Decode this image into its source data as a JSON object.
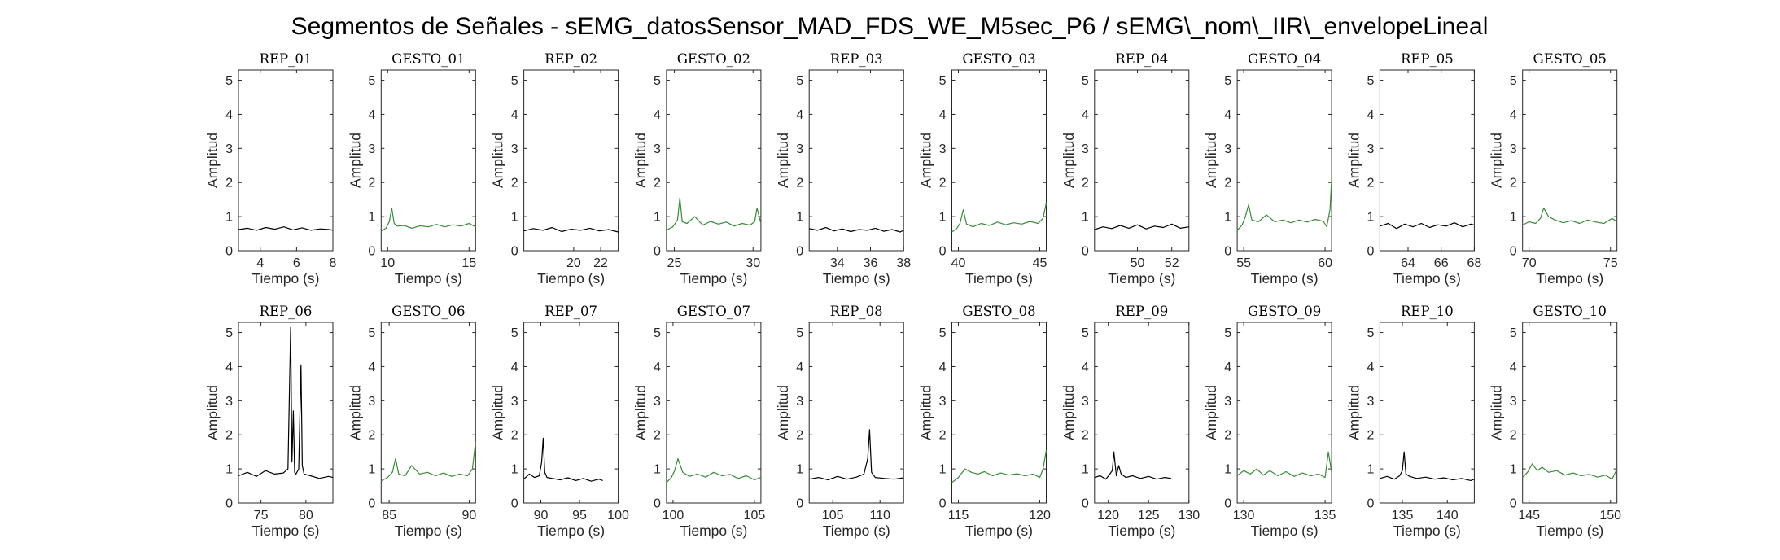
{
  "figure": {
    "title": "Segmentos de Señales - sEMG_datosSensor_MAD_FDS_WE_M5sec_P6 / sEMG\\_nom\\_IIR\\_envelopeLineal"
  },
  "colors": {
    "rep": "#000000",
    "gesto": "#3a8a3a",
    "axis": "#262626"
  },
  "chart_data": [
    {
      "type": "line",
      "title": "REP_01",
      "xlabel": "Tiempo (s)",
      "ylabel": "Amplitud",
      "xlim": [
        2.8,
        8
      ],
      "ylim": [
        0,
        5.3
      ],
      "xticks": [
        4,
        6,
        8
      ],
      "yticks": [
        0,
        1,
        2,
        3,
        4,
        5
      ],
      "color_key": "rep",
      "x": [
        2.8,
        3.3,
        3.8,
        4.3,
        4.8,
        5.3,
        5.8,
        6.3,
        6.8,
        7.3,
        7.8,
        8.0
      ],
      "y": [
        0.62,
        0.66,
        0.6,
        0.68,
        0.63,
        0.7,
        0.61,
        0.67,
        0.6,
        0.64,
        0.62,
        0.6
      ]
    },
    {
      "type": "line",
      "title": "GESTO_01",
      "xlabel": "Tiempo (s)",
      "ylabel": "Amplitud",
      "xlim": [
        9.6,
        15.4
      ],
      "ylim": [
        0,
        5.3
      ],
      "xticks": [
        10,
        15
      ],
      "yticks": [
        0,
        1,
        2,
        3,
        4,
        5
      ],
      "color_key": "gesto",
      "x": [
        9.6,
        9.9,
        10.1,
        10.25,
        10.4,
        10.6,
        11.0,
        11.5,
        12.0,
        12.5,
        13.0,
        13.5,
        14.0,
        14.5,
        15.0,
        15.4
      ],
      "y": [
        0.58,
        0.66,
        0.85,
        1.25,
        0.8,
        0.72,
        0.74,
        0.66,
        0.73,
        0.7,
        0.77,
        0.7,
        0.76,
        0.72,
        0.8,
        0.7
      ]
    },
    {
      "type": "line",
      "title": "REP_02",
      "xlabel": "Tiempo (s)",
      "ylabel": "Amplitud",
      "xlim": [
        16.3,
        23.3
      ],
      "ylim": [
        0,
        5.3
      ],
      "xticks": [
        20,
        22
      ],
      "yticks": [
        0,
        1,
        2,
        3,
        4,
        5
      ],
      "color_key": "rep",
      "x": [
        16.3,
        17.0,
        17.7,
        18.4,
        19.1,
        19.8,
        20.5,
        21.2,
        21.9,
        22.6,
        23.3
      ],
      "y": [
        0.58,
        0.65,
        0.6,
        0.68,
        0.56,
        0.63,
        0.6,
        0.66,
        0.58,
        0.62,
        0.55
      ]
    },
    {
      "type": "line",
      "title": "GESTO_02",
      "xlabel": "Tiempo (s)",
      "ylabel": "Amplitud",
      "xlim": [
        24.5,
        30.5
      ],
      "ylim": [
        0,
        5.3
      ],
      "xticks": [
        25,
        30
      ],
      "yticks": [
        0,
        1,
        2,
        3,
        4,
        5
      ],
      "color_key": "gesto",
      "x": [
        24.5,
        24.9,
        25.2,
        25.35,
        25.5,
        25.8,
        26.3,
        26.8,
        27.3,
        27.8,
        28.3,
        28.8,
        29.3,
        29.8,
        30.1,
        30.25,
        30.5
      ],
      "y": [
        0.6,
        0.7,
        0.9,
        1.55,
        0.85,
        0.8,
        1.0,
        0.75,
        0.86,
        0.78,
        0.84,
        0.72,
        0.8,
        0.75,
        0.85,
        1.25,
        0.8
      ]
    },
    {
      "type": "line",
      "title": "REP_03",
      "xlabel": "Tiempo (s)",
      "ylabel": "Amplitud",
      "xlim": [
        32.3,
        38
      ],
      "ylim": [
        0,
        5.3
      ],
      "xticks": [
        34,
        36,
        38
      ],
      "yticks": [
        0,
        1,
        2,
        3,
        4,
        5
      ],
      "color_key": "rep",
      "x": [
        32.3,
        32.8,
        33.3,
        33.8,
        34.3,
        34.8,
        35.3,
        35.8,
        36.3,
        36.8,
        37.3,
        37.8,
        38.0
      ],
      "y": [
        0.65,
        0.6,
        0.68,
        0.58,
        0.64,
        0.56,
        0.62,
        0.6,
        0.66,
        0.57,
        0.62,
        0.55,
        0.6
      ]
    },
    {
      "type": "line",
      "title": "GESTO_03",
      "xlabel": "Tiempo (s)",
      "ylabel": "Amplitud",
      "xlim": [
        39.6,
        45.4
      ],
      "ylim": [
        0,
        5.3
      ],
      "xticks": [
        40,
        45
      ],
      "yticks": [
        0,
        1,
        2,
        3,
        4,
        5
      ],
      "color_key": "gesto",
      "x": [
        39.6,
        39.9,
        40.1,
        40.3,
        40.5,
        40.9,
        41.4,
        41.9,
        42.4,
        42.9,
        43.4,
        43.9,
        44.4,
        44.9,
        45.2,
        45.4
      ],
      "y": [
        0.55,
        0.65,
        0.8,
        1.2,
        0.78,
        0.7,
        0.8,
        0.74,
        0.84,
        0.76,
        0.82,
        0.78,
        0.86,
        0.8,
        0.95,
        1.4
      ]
    },
    {
      "type": "line",
      "title": "REP_04",
      "xlabel": "Tiempo (s)",
      "ylabel": "Amplitud",
      "xlim": [
        47.5,
        53
      ],
      "ylim": [
        0,
        5.3
      ],
      "xticks": [
        50,
        52
      ],
      "yticks": [
        0,
        1,
        2,
        3,
        4,
        5
      ],
      "color_key": "rep",
      "x": [
        47.5,
        48.0,
        48.5,
        49.0,
        49.5,
        50.0,
        50.5,
        51.0,
        51.5,
        52.0,
        52.5,
        53.0
      ],
      "y": [
        0.62,
        0.7,
        0.65,
        0.74,
        0.66,
        0.76,
        0.64,
        0.72,
        0.68,
        0.78,
        0.66,
        0.7
      ]
    },
    {
      "type": "line",
      "title": "GESTO_04",
      "xlabel": "Tiempo (s)",
      "ylabel": "Amplitud",
      "xlim": [
        54.6,
        60.4
      ],
      "ylim": [
        0,
        5.3
      ],
      "xticks": [
        55,
        60
      ],
      "yticks": [
        0,
        1,
        2,
        3,
        4,
        5
      ],
      "color_key": "gesto",
      "x": [
        54.6,
        54.9,
        55.1,
        55.3,
        55.5,
        55.9,
        56.4,
        56.9,
        57.4,
        57.9,
        58.4,
        58.9,
        59.4,
        59.9,
        60.1,
        60.3,
        60.4
      ],
      "y": [
        0.6,
        0.75,
        1.0,
        1.35,
        0.9,
        0.85,
        1.05,
        0.85,
        0.9,
        0.82,
        0.9,
        0.84,
        0.92,
        0.86,
        0.7,
        1.2,
        2.1
      ]
    },
    {
      "type": "line",
      "title": "REP_05",
      "xlabel": "Tiempo (s)",
      "ylabel": "Amplitud",
      "xlim": [
        62.3,
        68
      ],
      "ylim": [
        0,
        5.3
      ],
      "xticks": [
        64,
        66,
        68
      ],
      "yticks": [
        0,
        1,
        2,
        3,
        4,
        5
      ],
      "color_key": "rep",
      "x": [
        62.3,
        62.8,
        63.3,
        63.8,
        64.3,
        64.8,
        65.3,
        65.8,
        66.3,
        66.8,
        67.3,
        67.8,
        68.0
      ],
      "y": [
        0.72,
        0.8,
        0.65,
        0.78,
        0.7,
        0.8,
        0.68,
        0.76,
        0.72,
        0.82,
        0.7,
        0.78,
        0.75
      ]
    },
    {
      "type": "line",
      "title": "GESTO_05",
      "xlabel": "Tiempo (s)",
      "ylabel": "Amplitud",
      "xlim": [
        69.6,
        75.4
      ],
      "ylim": [
        0,
        5.3
      ],
      "xticks": [
        70,
        75
      ],
      "yticks": [
        0,
        1,
        2,
        3,
        4,
        5
      ],
      "color_key": "gesto",
      "x": [
        69.6,
        70.0,
        70.4,
        70.7,
        70.9,
        71.2,
        71.6,
        72.1,
        72.6,
        73.1,
        73.6,
        74.1,
        74.6,
        75.1,
        75.4
      ],
      "y": [
        0.75,
        0.85,
        0.8,
        0.95,
        1.25,
        1.0,
        0.9,
        0.82,
        0.88,
        0.8,
        0.9,
        0.84,
        0.8,
        0.95,
        0.85
      ]
    },
    {
      "type": "line",
      "title": "REP_06",
      "xlabel": "Tiempo (s)",
      "ylabel": "Amplitud",
      "xlim": [
        72.5,
        83
      ],
      "ylim": [
        0,
        5.3
      ],
      "xticks": [
        75,
        80
      ],
      "yticks": [
        0,
        1,
        2,
        3,
        4,
        5
      ],
      "color_key": "rep",
      "x": [
        72.5,
        73.5,
        74.5,
        75.5,
        76.5,
        77.5,
        78.0,
        78.3,
        78.45,
        78.6,
        78.75,
        78.9,
        79.2,
        79.45,
        79.6,
        79.8,
        80.5,
        81.5,
        82.5,
        83.0
      ],
      "y": [
        0.8,
        0.9,
        0.78,
        0.95,
        0.85,
        0.88,
        1.0,
        5.15,
        1.2,
        2.7,
        0.9,
        0.85,
        1.0,
        4.05,
        1.1,
        0.85,
        0.8,
        0.72,
        0.78,
        0.75
      ]
    },
    {
      "type": "line",
      "title": "GESTO_06",
      "xlabel": "Tiempo (s)",
      "ylabel": "Amplitud",
      "xlim": [
        84.5,
        90.4
      ],
      "ylim": [
        0,
        5.3
      ],
      "xticks": [
        85,
        90
      ],
      "yticks": [
        0,
        1,
        2,
        3,
        4,
        5
      ],
      "color_key": "gesto",
      "x": [
        84.5,
        84.9,
        85.2,
        85.4,
        85.6,
        86.0,
        86.4,
        86.9,
        87.4,
        87.9,
        88.4,
        88.9,
        89.4,
        89.9,
        90.2,
        90.4
      ],
      "y": [
        0.65,
        0.75,
        0.9,
        1.3,
        0.85,
        0.8,
        1.1,
        0.85,
        0.9,
        0.8,
        0.88,
        0.78,
        0.85,
        0.8,
        1.0,
        1.8
      ]
    },
    {
      "type": "line",
      "title": "REP_07",
      "xlabel": "Tiempo (s)",
      "ylabel": "Amplitud",
      "xlim": [
        87.8,
        100
      ],
      "ylim": [
        0,
        5.3
      ],
      "xticks": [
        90,
        95,
        100
      ],
      "yticks": [
        0,
        1,
        2,
        3,
        4,
        5
      ],
      "color_key": "rep",
      "x": [
        87.8,
        88.5,
        89.2,
        89.8,
        90.1,
        90.3,
        90.5,
        90.8,
        91.5,
        92.5,
        93.5,
        94.5,
        95.5,
        96.5,
        97.5,
        98.0
      ],
      "y": [
        0.7,
        0.85,
        0.75,
        0.8,
        1.2,
        1.9,
        0.9,
        0.75,
        0.72,
        0.68,
        0.74,
        0.66,
        0.72,
        0.64,
        0.7,
        0.66
      ]
    },
    {
      "type": "line",
      "title": "GESTO_07",
      "xlabel": "Tiempo (s)",
      "ylabel": "Amplitud",
      "xlim": [
        99.6,
        105.4
      ],
      "ylim": [
        0,
        5.3
      ],
      "xticks": [
        100,
        105
      ],
      "yticks": [
        0,
        1,
        2,
        3,
        4,
        5
      ],
      "color_key": "gesto",
      "x": [
        99.6,
        99.9,
        100.1,
        100.3,
        100.6,
        101.0,
        101.5,
        102.0,
        102.5,
        103.0,
        103.5,
        104.0,
        104.5,
        105.0,
        105.4
      ],
      "y": [
        0.6,
        0.75,
        0.95,
        1.3,
        0.9,
        0.78,
        0.85,
        0.76,
        0.9,
        0.8,
        0.84,
        0.72,
        0.8,
        0.68,
        0.75
      ]
    },
    {
      "type": "line",
      "title": "REP_08",
      "xlabel": "Tiempo (s)",
      "ylabel": "Amplitud",
      "xlim": [
        102.5,
        112.5
      ],
      "ylim": [
        0,
        5.3
      ],
      "xticks": [
        105,
        110
      ],
      "yticks": [
        0,
        1,
        2,
        3,
        4,
        5
      ],
      "color_key": "rep",
      "x": [
        102.5,
        103.5,
        104.5,
        105.5,
        106.5,
        107.5,
        108.3,
        108.7,
        108.9,
        109.1,
        109.5,
        110.5,
        111.5,
        112.5
      ],
      "y": [
        0.7,
        0.75,
        0.68,
        0.78,
        0.7,
        0.76,
        0.85,
        1.3,
        2.15,
        0.9,
        0.75,
        0.72,
        0.7,
        0.74
      ]
    },
    {
      "type": "line",
      "title": "GESTO_08",
      "xlabel": "Tiempo (s)",
      "ylabel": "Amplitud",
      "xlim": [
        114.6,
        120.4
      ],
      "ylim": [
        0,
        5.3
      ],
      "xticks": [
        115,
        120
      ],
      "yticks": [
        0,
        1,
        2,
        3,
        4,
        5
      ],
      "color_key": "gesto",
      "x": [
        114.6,
        115.0,
        115.4,
        115.8,
        116.2,
        116.6,
        117.1,
        117.6,
        118.1,
        118.6,
        119.1,
        119.6,
        120.0,
        120.2,
        120.4
      ],
      "y": [
        0.6,
        0.75,
        1.0,
        0.9,
        0.85,
        0.92,
        0.8,
        0.88,
        0.82,
        0.86,
        0.8,
        0.85,
        0.75,
        1.0,
        1.55
      ]
    },
    {
      "type": "line",
      "title": "REP_09",
      "xlabel": "Tiempo (s)",
      "ylabel": "Amplitud",
      "xlim": [
        118.3,
        130
      ],
      "ylim": [
        0,
        5.3
      ],
      "xticks": [
        120,
        125,
        130
      ],
      "yticks": [
        0,
        1,
        2,
        3,
        4,
        5
      ],
      "color_key": "rep",
      "x": [
        118.3,
        119.0,
        119.7,
        120.2,
        120.5,
        120.7,
        121.0,
        121.3,
        121.6,
        122.2,
        123.0,
        124.0,
        125.0,
        126.0,
        127.0,
        127.8
      ],
      "y": [
        0.75,
        0.8,
        0.7,
        0.85,
        0.95,
        1.5,
        0.8,
        1.1,
        0.85,
        0.75,
        0.8,
        0.72,
        0.78,
        0.7,
        0.75,
        0.72
      ]
    },
    {
      "type": "line",
      "title": "GESTO_09",
      "xlabel": "Tiempo (s)",
      "ylabel": "Amplitud",
      "xlim": [
        129.6,
        135.4
      ],
      "ylim": [
        0,
        5.3
      ],
      "xticks": [
        130,
        135
      ],
      "yticks": [
        0,
        1,
        2,
        3,
        4,
        5
      ],
      "color_key": "gesto",
      "x": [
        129.6,
        130.0,
        130.4,
        130.8,
        131.2,
        131.6,
        132.1,
        132.6,
        133.1,
        133.6,
        134.1,
        134.6,
        135.0,
        135.2,
        135.4
      ],
      "y": [
        0.8,
        0.95,
        0.85,
        1.0,
        0.82,
        0.95,
        0.8,
        0.92,
        0.78,
        0.88,
        0.8,
        0.85,
        0.75,
        1.5,
        0.9
      ]
    },
    {
      "type": "line",
      "title": "REP_10",
      "xlabel": "Tiempo (s)",
      "ylabel": "Amplitud",
      "xlim": [
        132.5,
        143
      ],
      "ylim": [
        0,
        5.3
      ],
      "xticks": [
        135,
        140
      ],
      "yticks": [
        0,
        1,
        2,
        3,
        4,
        5
      ],
      "color_key": "rep",
      "x": [
        132.5,
        133.3,
        134.1,
        134.7,
        135.0,
        135.2,
        135.4,
        135.8,
        136.6,
        137.6,
        138.6,
        139.6,
        140.6,
        141.6,
        142.6,
        143.0
      ],
      "y": [
        0.72,
        0.78,
        0.7,
        0.8,
        0.95,
        1.5,
        0.85,
        0.78,
        0.72,
        0.76,
        0.7,
        0.74,
        0.68,
        0.72,
        0.66,
        0.7
      ]
    },
    {
      "type": "line",
      "title": "GESTO_10",
      "xlabel": "Tiempo (s)",
      "ylabel": "Amplitud",
      "xlim": [
        144.6,
        150.4
      ],
      "ylim": [
        0,
        5.3
      ],
      "xticks": [
        145,
        150
      ],
      "yticks": [
        0,
        1,
        2,
        3,
        4,
        5
      ],
      "color_key": "gesto",
      "x": [
        144.6,
        144.9,
        145.2,
        145.5,
        145.8,
        146.2,
        146.7,
        147.2,
        147.7,
        148.2,
        148.7,
        149.2,
        149.7,
        150.1,
        150.4
      ],
      "y": [
        0.75,
        0.9,
        1.15,
        0.95,
        1.05,
        0.9,
        0.95,
        0.82,
        0.88,
        0.8,
        0.84,
        0.76,
        0.82,
        0.7,
        1.0
      ]
    }
  ]
}
